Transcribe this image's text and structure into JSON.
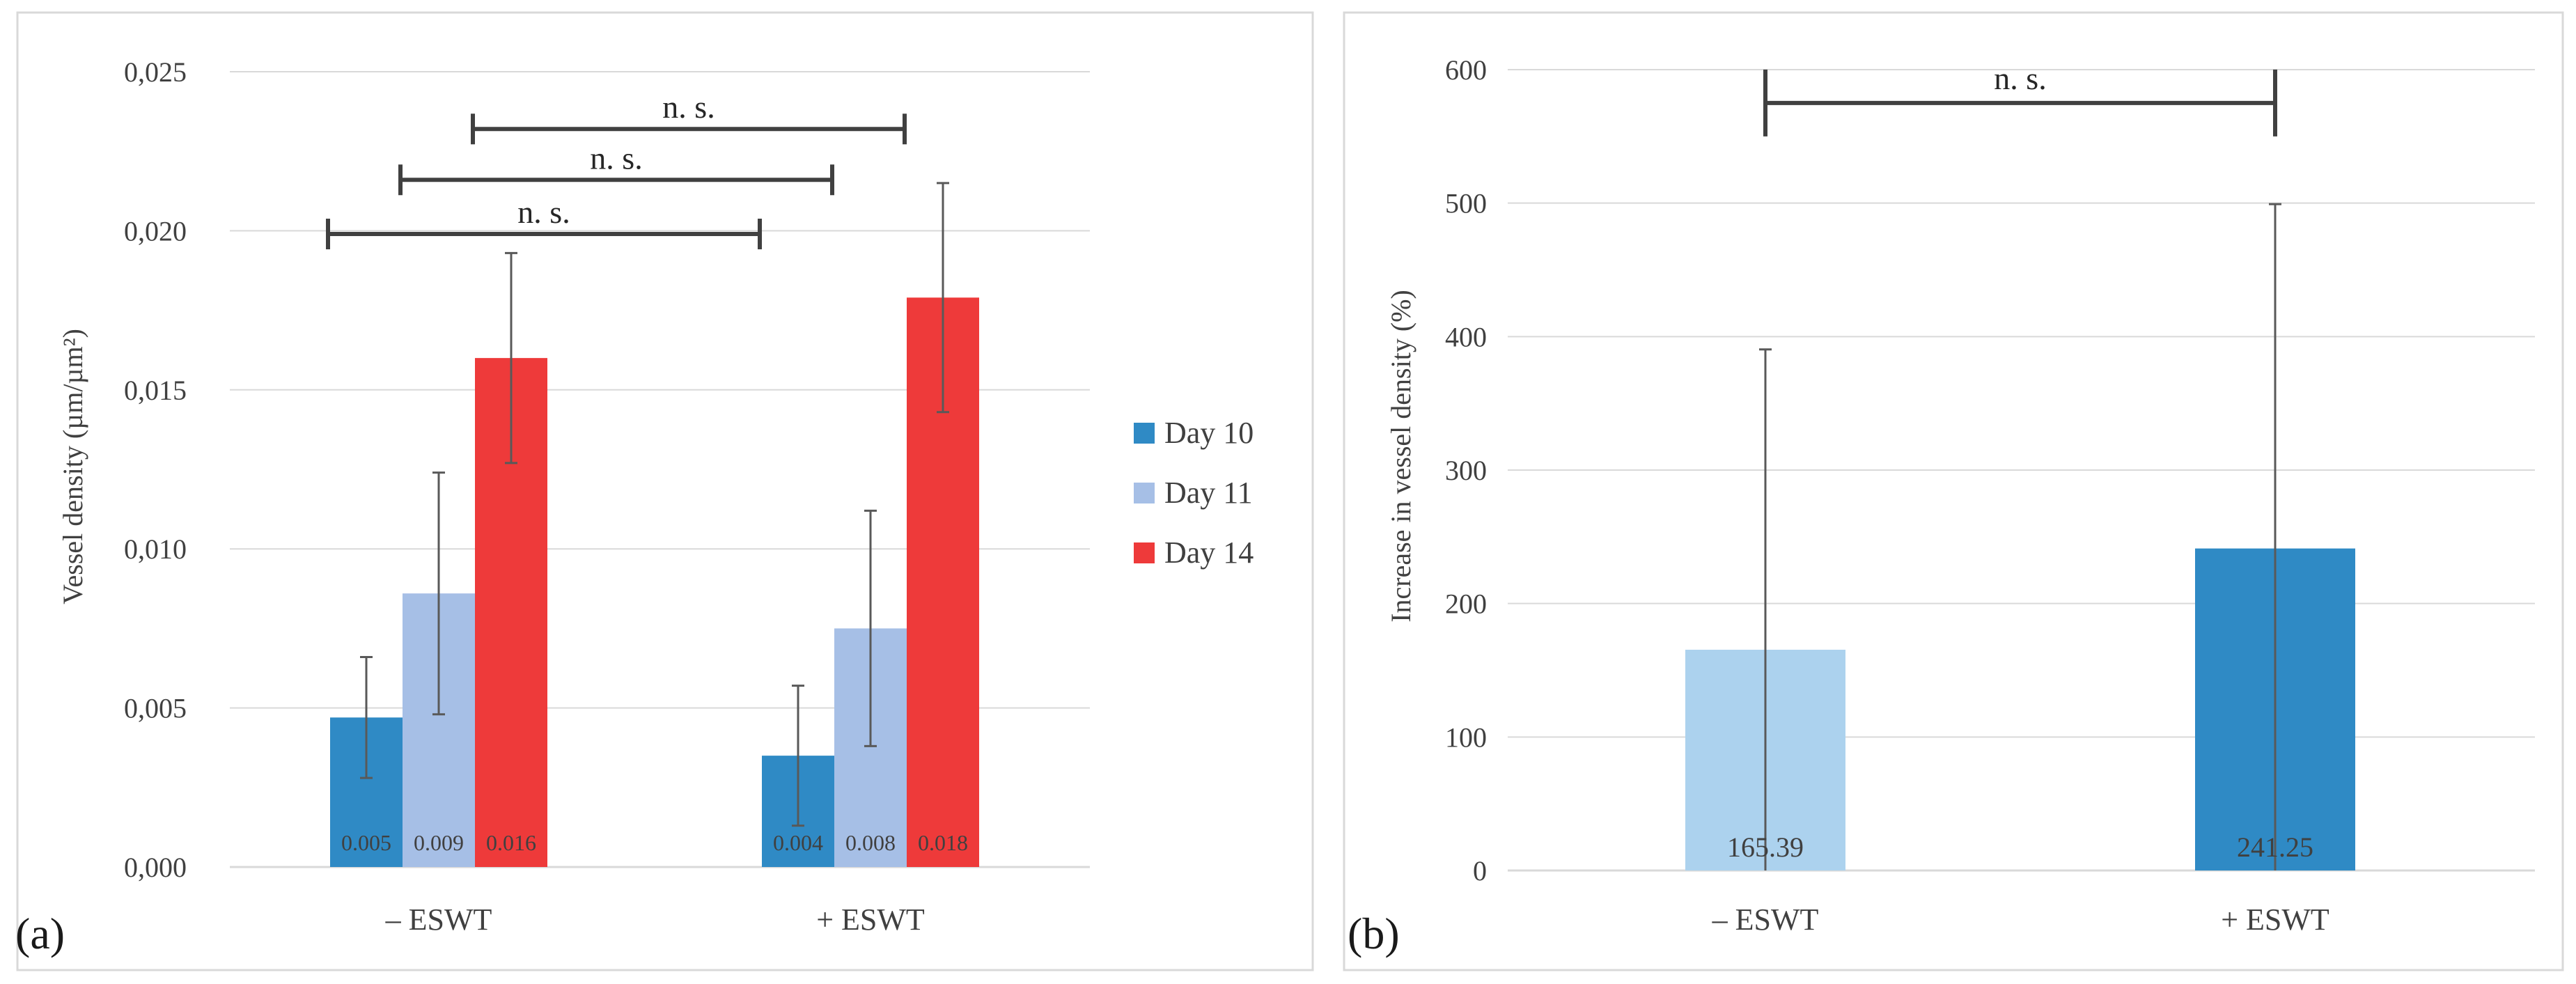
{
  "colors": {
    "day10": "#2f8ac5",
    "day11": "#a6bfe6",
    "day14": "#ee3a3a",
    "b_minus": "#acd2ee",
    "b_plus": "#2f8ac5"
  },
  "chart_data": [
    {
      "type": "bar",
      "panel_label": "(a)",
      "categories": [
        "– ESWT",
        "+ ESWT"
      ],
      "ylabel": "Vessel density (µm/µm²)",
      "ylim": [
        0,
        0.025
      ],
      "yticks": [
        0,
        0.005,
        0.01,
        0.015,
        0.02,
        0.025
      ],
      "ytick_labels": [
        "0,000",
        "0,005",
        "0,010",
        "0,015",
        "0,020",
        "0,025"
      ],
      "grid": true,
      "legend_position": "right",
      "series": [
        {
          "name": "Day 10",
          "color_key": "day10",
          "values": [
            0.0047,
            0.0035
          ],
          "errors": [
            0.0019,
            0.0022
          ],
          "labels": [
            "0.005",
            "0.004"
          ]
        },
        {
          "name": "Day 11",
          "color_key": "day11",
          "values": [
            0.0086,
            0.0075
          ],
          "errors": [
            0.0038,
            0.0037
          ],
          "labels": [
            "0.009",
            "0.008"
          ]
        },
        {
          "name": "Day 14",
          "color_key": "day14",
          "values": [
            0.016,
            0.0179
          ],
          "errors": [
            0.0033,
            0.0036
          ],
          "labels": [
            "0.016",
            "0.018"
          ]
        }
      ],
      "annotations": [
        {
          "text": "n. s.",
          "from_series": 0,
          "level": 0.0199
        },
        {
          "text": "n. s.",
          "from_series": 1,
          "level": 0.0216
        },
        {
          "text": "n. s.",
          "from_series": 2,
          "level": 0.0232
        }
      ]
    },
    {
      "type": "bar",
      "panel_label": "(b)",
      "categories": [
        "– ESWT",
        "+ ESWT"
      ],
      "ylabel": "Increase in vessel density (%)",
      "ylim": [
        0,
        600
      ],
      "yticks": [
        0,
        100,
        200,
        300,
        400,
        500,
        600
      ],
      "ytick_labels": [
        "0",
        "100",
        "200",
        "300",
        "400",
        "500",
        "600"
      ],
      "grid": true,
      "series": [
        {
          "name": "Increase",
          "values": [
            165.39,
            241.25
          ],
          "errors": [
            225,
            258
          ],
          "labels": [
            "165.39",
            "241.25"
          ],
          "color_keys": [
            "b_minus",
            "b_plus"
          ]
        }
      ],
      "annotations": [
        {
          "text": "n. s.",
          "level": 575
        }
      ]
    }
  ]
}
